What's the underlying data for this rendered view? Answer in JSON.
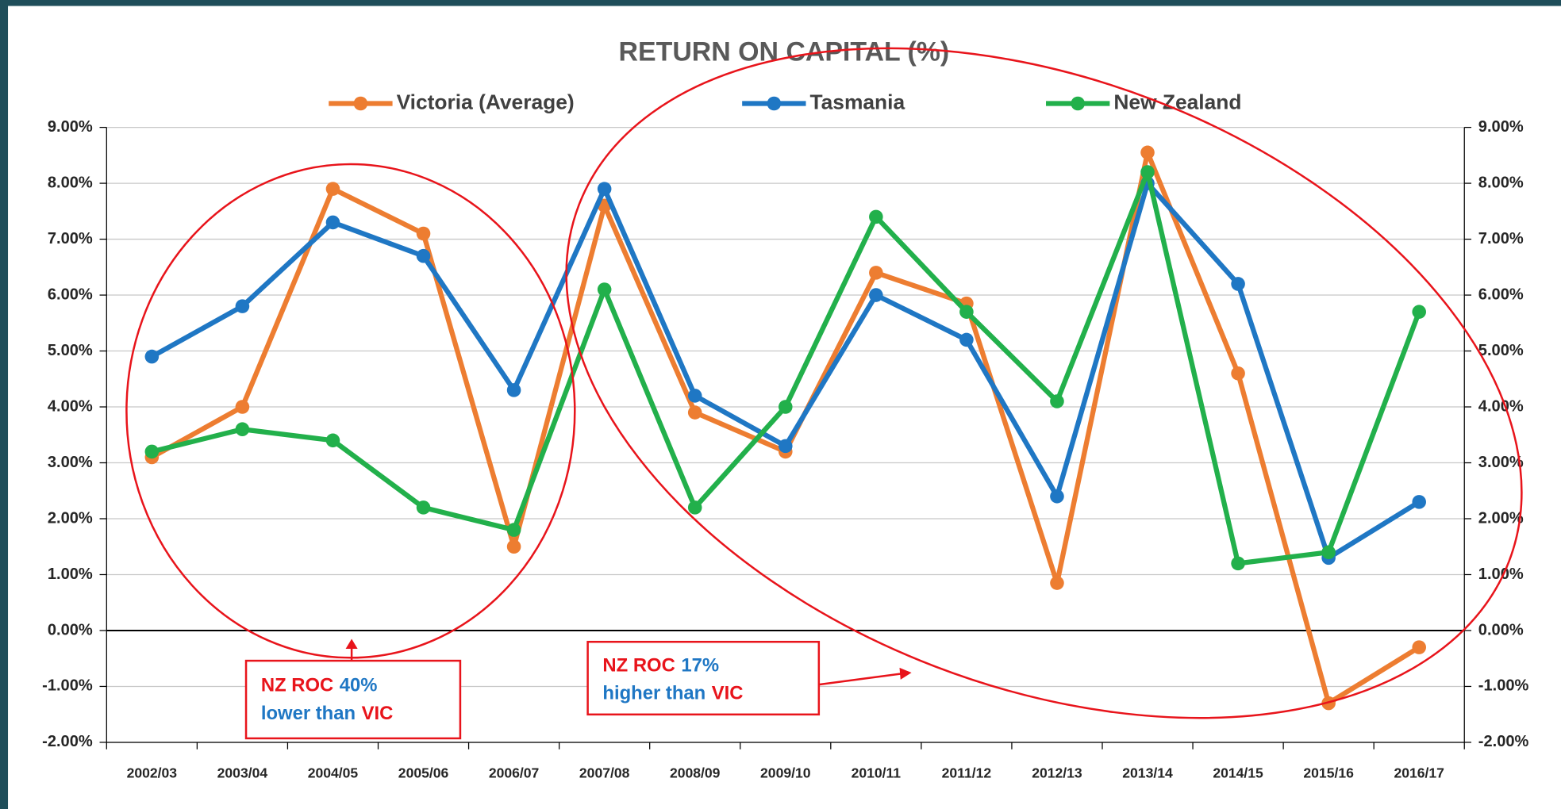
{
  "chart_data": {
    "type": "line",
    "title": "RETURN ON CAPITAL (%)",
    "categories": [
      "2002/03",
      "2003/04",
      "2004/05",
      "2005/06",
      "2006/07",
      "2007/08",
      "2008/09",
      "2009/10",
      "2010/11",
      "2011/12",
      "2012/13",
      "2013/14",
      "2014/15",
      "2015/16",
      "2016/17"
    ],
    "series": [
      {
        "name": "Victoria (Average)",
        "color": "#ed7d31",
        "values": [
          3.1,
          4.0,
          7.9,
          7.1,
          1.5,
          7.6,
          3.9,
          3.2,
          6.4,
          5.85,
          0.85,
          8.55,
          4.6,
          -1.3,
          -0.3
        ]
      },
      {
        "name": "Tasmania",
        "color": "#1f77c4",
        "values": [
          4.9,
          5.8,
          7.3,
          6.7,
          4.3,
          7.9,
          4.2,
          3.3,
          6.0,
          5.2,
          2.4,
          8.0,
          6.2,
          1.3,
          2.3
        ]
      },
      {
        "name": "New Zealand",
        "color": "#22b04b",
        "values": [
          3.2,
          3.6,
          3.4,
          2.2,
          1.8,
          6.1,
          2.2,
          4.0,
          7.4,
          5.7,
          4.1,
          8.2,
          1.2,
          1.4,
          5.7
        ]
      }
    ],
    "ylim": [
      -2,
      9
    ],
    "yticks": [
      {
        "value": -2,
        "label": "-2.00%"
      },
      {
        "value": -1,
        "label": "-1.00%"
      },
      {
        "value": 0,
        "label": "0.00%"
      },
      {
        "value": 1,
        "label": "1.00%"
      },
      {
        "value": 2,
        "label": "2.00%"
      },
      {
        "value": 3,
        "label": "3.00%"
      },
      {
        "value": 4,
        "label": "4.00%"
      },
      {
        "value": 5,
        "label": "5.00%"
      },
      {
        "value": 6,
        "label": "6.00%"
      },
      {
        "value": 7,
        "label": "7.00%"
      },
      {
        "value": 8,
        "label": "8.00%"
      },
      {
        "value": 9,
        "label": "9.00%"
      }
    ],
    "grid": true,
    "annotations": [
      {
        "line1": [
          "NZ ROC",
          "40%"
        ],
        "line2": [
          "lower than",
          "VIC"
        ]
      },
      {
        "line1": [
          "NZ ROC",
          "17%"
        ],
        "line2": [
          "higher than",
          "VIC"
        ]
      }
    ]
  }
}
